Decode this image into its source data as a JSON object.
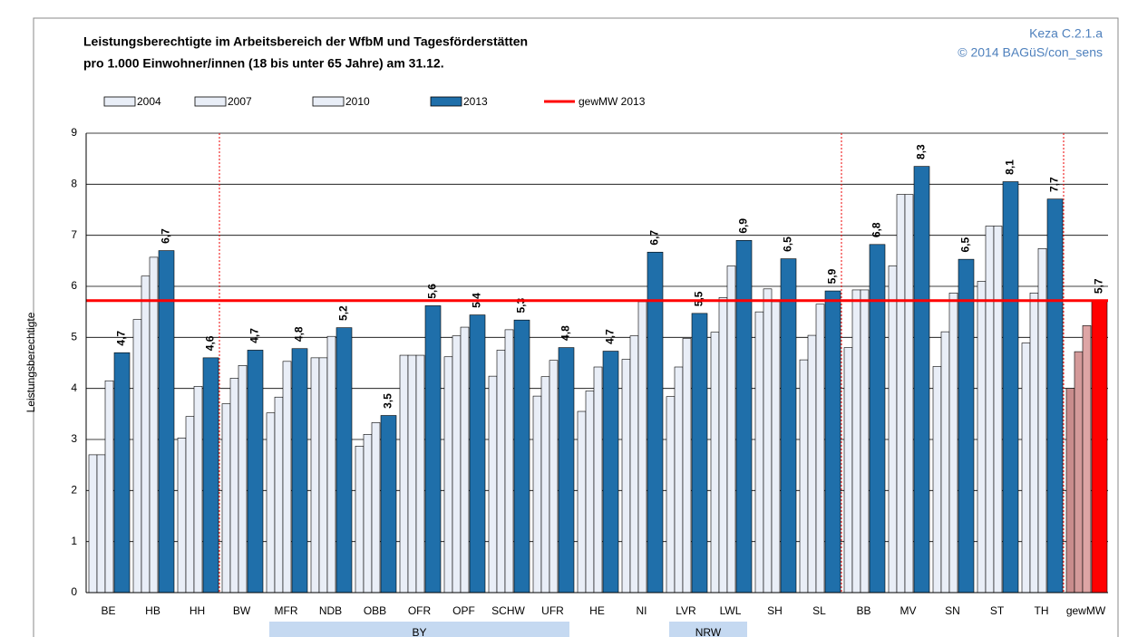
{
  "chart_data": {
    "type": "bar",
    "title": [
      "Leistungsberechtigte im Arbeitsbereich der WfbM und Tagesförderstätten",
      "pro 1.000 Einwohner/innen (18 bis unter 65 Jahre) am 31.12."
    ],
    "notes": [
      "Keza C.2.1.a",
      "© 2014 BAGüS/con_sens"
    ],
    "y_label": "Leistungsberechtigte",
    "categories": [
      "BE",
      "HB",
      "HH",
      "BW",
      "MFR",
      "NDB",
      "OBB",
      "OFR",
      "OPF",
      "SCHW",
      "UFR",
      "HE",
      "NI",
      "LVR",
      "LWL",
      "SH",
      "SL",
      "BB",
      "MV",
      "SN",
      "ST",
      "TH",
      "gewMW"
    ],
    "groups": [
      "BY",
      "NRW"
    ],
    "series": [
      {
        "name": "2004",
        "color": "#e9eef7",
        "highlight_color": "#c98c8c",
        "values": [
          2.7,
          5.35,
          3.03,
          3.7,
          3.52,
          4.6,
          2.87,
          4.65,
          4.62,
          4.24,
          3.85,
          3.55,
          4.57,
          3.84,
          5.1,
          5.5,
          4.56,
          4.8,
          6.4,
          4.43,
          6.1,
          4.89,
          4.0
        ]
      },
      {
        "name": "2007",
        "color": "#e9eef7",
        "highlight_color": "#d49a9a",
        "values": [
          2.7,
          6.2,
          3.45,
          4.2,
          3.83,
          4.6,
          3.1,
          4.65,
          5.03,
          4.75,
          4.23,
          3.95,
          5.03,
          4.42,
          5.78,
          5.95,
          5.04,
          5.93,
          7.8,
          5.11,
          7.18,
          5.87,
          4.72
        ]
      },
      {
        "name": "2010",
        "color": "#e9eef7",
        "highlight_color": "#dea5a5",
        "values": [
          4.15,
          6.57,
          4.04,
          4.45,
          4.53,
          5.02,
          3.33,
          4.65,
          5.2,
          5.15,
          4.55,
          4.42,
          5.7,
          4.98,
          6.4,
          5.7,
          5.65,
          5.93,
          7.8,
          5.87,
          7.18,
          6.74,
          5.23
        ]
      },
      {
        "name": "2013",
        "color": "#1f6faa",
        "highlight_color": "#ff0000",
        "values": [
          4.7,
          6.7,
          4.6,
          4.75,
          4.78,
          5.19,
          3.47,
          5.62,
          5.44,
          5.34,
          4.8,
          4.73,
          6.67,
          5.47,
          6.9,
          6.54,
          5.91,
          6.82,
          8.35,
          6.53,
          8.05,
          7.71,
          5.72
        ],
        "value_labels": [
          "4,7",
          "6,7",
          "4,6",
          "4,7",
          "4,8",
          "5,2",
          "3,5",
          "5,6",
          "5,4",
          "5,3",
          "4,8",
          "4,7",
          "6,7",
          "5,5",
          "6,9",
          "6,5",
          "5,9",
          "6,8",
          "8,3",
          "6,5",
          "8,1",
          "7,7",
          "5,7"
        ]
      }
    ],
    "reference_line": {
      "name": "gewMW 2013",
      "value": 5.72,
      "color": "#ff0000"
    },
    "ylim": [
      0,
      9
    ],
    "yticks": [
      0,
      1,
      2,
      3,
      4,
      5,
      6,
      7,
      8,
      9
    ],
    "grid": true
  }
}
